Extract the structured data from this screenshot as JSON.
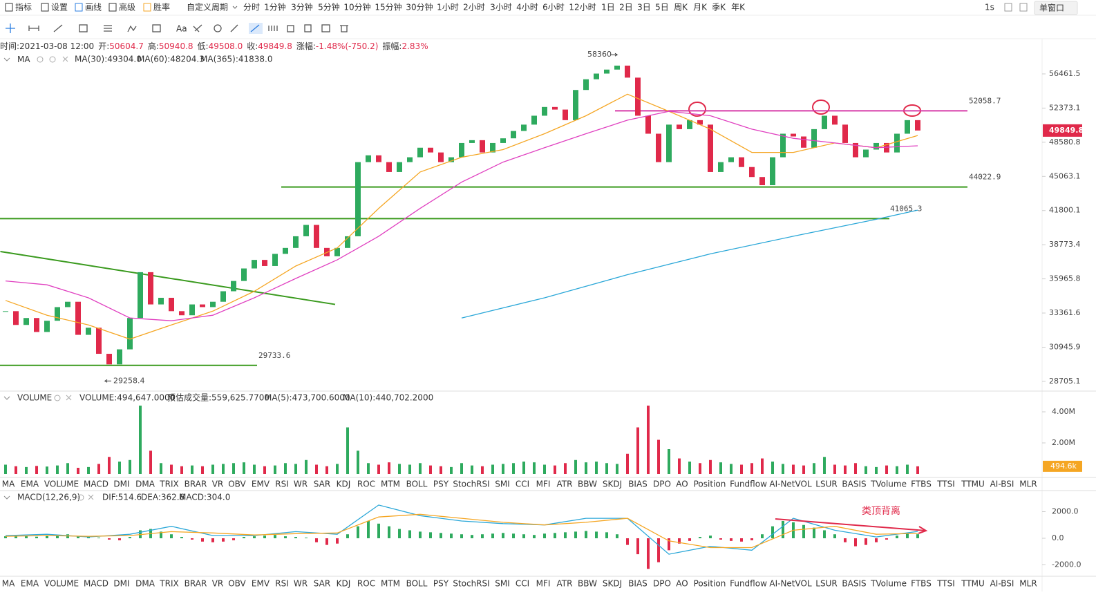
{
  "toolbar": {
    "left": [
      "指标",
      "设置",
      "画线",
      "高级",
      "胜率"
    ],
    "periods": [
      "自定义周期",
      "分时",
      "1分钟",
      "3分钟",
      "5分钟",
      "10分钟",
      "15分钟",
      "30分钟",
      "1小时",
      "2小时",
      "3小时",
      "4小时",
      "6小时",
      "12小时",
      "1日",
      "2日",
      "3日",
      "5日",
      "周K",
      "月K",
      "季K",
      "年K"
    ],
    "active_period": 11,
    "right": [
      "1s",
      "单窗口"
    ],
    "draw_text_icon": "Aa"
  },
  "info": {
    "time": "时间:2021-03-08 12:00",
    "items": [
      {
        "label": "开:",
        "value": "50604.7"
      },
      {
        "label": "高:",
        "value": "50940.8"
      },
      {
        "label": "低:",
        "value": "49508.0"
      },
      {
        "label": "收:",
        "value": "49849.8"
      },
      {
        "label": "涨幅:",
        "value": "-1.48%(-750.2)"
      },
      {
        "label": "振幅:",
        "value": "2.83%"
      }
    ]
  },
  "price_chart": {
    "legend_name": "MA",
    "legend": [
      "MA(30):49304.0",
      "MA(60):48204.3",
      "MA(365):41838.0"
    ],
    "log_scale": true,
    "ylim": [
      28140,
      60640
    ],
    "yticks": [
      56461.5,
      52373.1,
      48580.8,
      45063.1,
      41800.1,
      38773.4,
      35965.8,
      33361.6,
      30945.9,
      28705.1
    ],
    "up_color": "#2eaa5e",
    "down_color": "#e0294a",
    "closes": [
      33500,
      32500,
      33000,
      32000,
      32800,
      33800,
      34200,
      31800,
      32300,
      30500,
      29800,
      30800,
      33000,
      36500,
      34000,
      34500,
      33500,
      33200,
      34000,
      33800,
      34200,
      35000,
      35800,
      36800,
      37500,
      37000,
      38000,
      38500,
      39500,
      40500,
      38500,
      37800,
      38500,
      39500,
      46500,
      47200,
      46500,
      45500,
      46500,
      47000,
      48000,
      47500,
      46500,
      47000,
      48500,
      48800,
      47500,
      48500,
      49000,
      49800,
      50500,
      51500,
      52500,
      52200,
      51000,
      54500,
      55800,
      56500,
      57000,
      57500,
      56000,
      51500,
      49500,
      46500,
      50500,
      50000,
      51000,
      50500,
      45500,
      46500,
      47000,
      46000,
      45000,
      44200,
      47000,
      49500,
      49200,
      48000,
      50000,
      51500,
      50500,
      48500,
      47000,
      47800,
      48500,
      47500,
      49500,
      51000,
      49849.8
    ],
    "ma": [
      {
        "color": "#f5a623",
        "x": [
          0,
          4,
          8,
          12,
          16,
          20,
          24,
          28,
          32,
          36,
          40,
          44,
          48,
          52,
          56,
          60,
          64,
          68,
          72,
          76,
          80,
          84,
          88
        ],
        "values": [
          34300,
          33200,
          32500,
          31500,
          32500,
          33500,
          35000,
          37000,
          38500,
          42000,
          45500,
          47000,
          47800,
          49500,
          51500,
          54000,
          52000,
          50000,
          47500,
          47500,
          48500,
          48000,
          49304
        ]
      },
      {
        "color": "#e040c0",
        "x": [
          0,
          4,
          8,
          12,
          16,
          20,
          24,
          28,
          32,
          36,
          40,
          44,
          48,
          52,
          56,
          60,
          64,
          68,
          72,
          76,
          80,
          84,
          88
        ],
        "values": [
          35800,
          35500,
          34500,
          33000,
          32800,
          33200,
          34500,
          36000,
          37500,
          39500,
          42000,
          44500,
          46500,
          48000,
          49500,
          51000,
          52000,
          51500,
          50000,
          49000,
          48500,
          48000,
          48204
        ]
      },
      {
        "color": "#2aa7d8",
        "x": [
          44,
          52,
          60,
          68,
          76,
          84,
          88
        ],
        "values": [
          33000,
          34500,
          36300,
          38000,
          39500,
          41000,
          41838
        ]
      }
    ],
    "trend_line": {
      "color": "#3a9a1e",
      "x": [
        -0.5,
        31.8
      ],
      "values": [
        38200,
        34000
      ]
    },
    "levels": [
      {
        "value": 52058.7,
        "color": "#d63aa8"
      },
      {
        "value": 44022.9,
        "color": "#3a9a1e"
      },
      {
        "value": 41065.3,
        "color": "#3a9a1e"
      },
      {
        "value": 29733.6,
        "color": "#3a9a1e"
      }
    ],
    "high_mark": 58360,
    "low_mark": 29258.4,
    "last_price": 49849.8
  },
  "volume_chart": {
    "name": "VOLUME",
    "legend": [
      "VOLUME:494,647.0000",
      "预估成交量:559,625.7700",
      "MA(5):473,700.6000",
      "MA(10):440,702.2000"
    ],
    "ylim": [
      0,
      5290000
    ],
    "yticks": [
      {
        "value": 4000000,
        "label": "4.00M"
      },
      {
        "value": 2000000,
        "label": "2.00M"
      }
    ],
    "last": {
      "value": 494647,
      "label": "494.6k"
    },
    "values": [
      600000,
      500000,
      450000,
      520000,
      480000,
      550000,
      700000,
      400000,
      450000,
      650000,
      1100000,
      800000,
      900000,
      4400000,
      1500000,
      700000,
      600000,
      500000,
      550000,
      500000,
      600000,
      650000,
      700000,
      750000,
      600000,
      500000,
      550000,
      700000,
      650000,
      900000,
      600000,
      500000,
      650000,
      3000000,
      1500000,
      700000,
      600000,
      750000,
      650000,
      600000,
      700000,
      550000,
      500000,
      450000,
      700000,
      550000,
      500000,
      600000,
      650000,
      700000,
      800000,
      750000,
      600000,
      550000,
      700000,
      900000,
      750000,
      800000,
      700000,
      650000,
      1300000,
      3000000,
      4400000,
      2200000,
      1600000,
      1000000,
      800000,
      700000,
      900000,
      750000,
      650000,
      600000,
      700000,
      1000000,
      800000,
      650000,
      600000,
      550000,
      700000,
      1100000,
      600000,
      550000,
      700000,
      500000,
      450000,
      550000,
      500000,
      600000,
      494647
    ]
  },
  "indicator_tabs": [
    "MA",
    "EMA",
    "VOLUME",
    "MACD",
    "DMI",
    "DMA",
    "TRIX",
    "BRAR",
    "VR",
    "OBV",
    "EMV",
    "RSI",
    "WR",
    "SAR",
    "KDJ",
    "ROC",
    "MTM",
    "BOLL",
    "PSY",
    "StochRSI",
    "SMI",
    "CCI",
    "MFI",
    "ATR",
    "BBW",
    "SKDJ",
    "BIAS",
    "DPO",
    "AO",
    "Position",
    "Fundflow",
    "AI-NetVOL",
    "LSUR",
    "BASIS",
    "TVolume",
    "FTBS",
    "TTSI",
    "TTMU",
    "AI-BSI",
    "MLR"
  ],
  "macd_chart": {
    "name": "MACD(12,26,9)",
    "legend": [
      "DIF:514.6",
      "DEA:362.6",
      "MACD:304.0"
    ],
    "ylim": [
      -2753,
      3584
    ],
    "yticks": [
      {
        "value": 2000,
        "label": "2000.0"
      },
      {
        "value": 0,
        "label": "0.0"
      },
      {
        "value": -2000,
        "label": "-2000.0"
      }
    ],
    "histogram": [
      150,
      200,
      180,
      120,
      200,
      250,
      300,
      150,
      100,
      50,
      -100,
      -150,
      100,
      600,
      700,
      500,
      300,
      100,
      -100,
      -250,
      -300,
      -250,
      -150,
      100,
      150,
      200,
      250,
      150,
      100,
      50,
      -300,
      -500,
      -400,
      300,
      900,
      1300,
      1100,
      900,
      700,
      600,
      500,
      450,
      400,
      350,
      300,
      250,
      300,
      350,
      400,
      350,
      300,
      250,
      350,
      400,
      450,
      500,
      550,
      500,
      450,
      300,
      -500,
      -1200,
      -2300,
      -1800,
      -900,
      -400,
      -200,
      100,
      200,
      -100,
      -200,
      -250,
      -150,
      300,
      900,
      1300,
      1200,
      1000,
      800,
      600,
      300,
      -300,
      -600,
      -500,
      -300,
      -100,
      200,
      400,
      304
    ],
    "dif": {
      "color": "#2aa7d8",
      "x": [
        0,
        4,
        8,
        12,
        16,
        20,
        24,
        28,
        32,
        36,
        40,
        44,
        48,
        52,
        56,
        60,
        64,
        68,
        72,
        76,
        80,
        84,
        88
      ],
      "values": [
        200,
        300,
        100,
        300,
        900,
        200,
        200,
        500,
        300,
        2500,
        1700,
        1300,
        1100,
        1000,
        1500,
        1500,
        -1200,
        -600,
        -900,
        1500,
        600,
        100,
        514.6
      ]
    },
    "dea": {
      "color": "#f5a623",
      "x": [
        0,
        4,
        8,
        12,
        16,
        20,
        24,
        28,
        32,
        36,
        40,
        44,
        48,
        52,
        56,
        60,
        64,
        68,
        72,
        76,
        80,
        84,
        88
      ],
      "values": [
        150,
        200,
        150,
        200,
        500,
        400,
        250,
        350,
        400,
        1600,
        1800,
        1500,
        1200,
        1000,
        1200,
        1500,
        -200,
        -700,
        -700,
        600,
        900,
        300,
        362.6
      ]
    },
    "annotation": "类顶背离"
  }
}
